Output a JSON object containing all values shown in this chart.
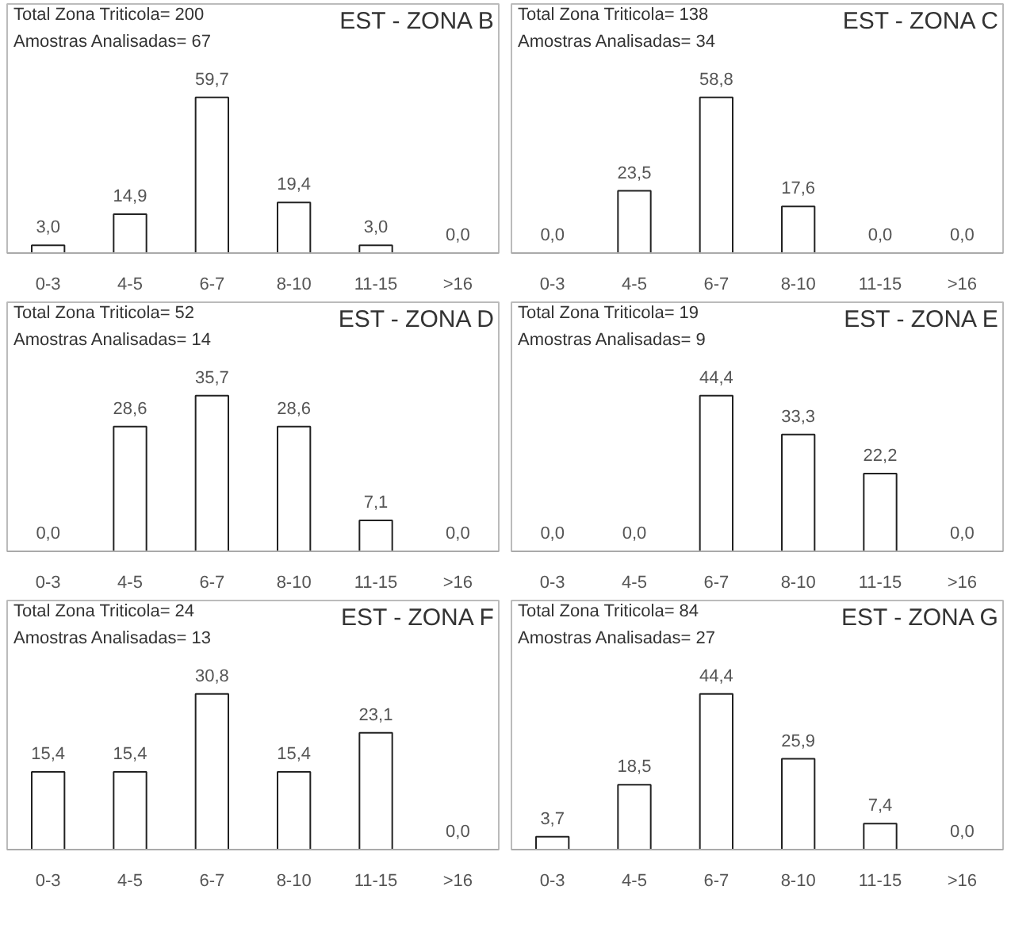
{
  "chart_data": [
    {
      "type": "bar",
      "title": "EST - ZONA B",
      "annotations": [
        "Total Zona Triticola= 200",
        "Amostras Analisadas= 67"
      ],
      "categories": [
        "0-3",
        "4-5",
        "6-7",
        "8-10",
        "11-15",
        ">16"
      ],
      "values": [
        3.0,
        14.9,
        59.7,
        19.4,
        3.0,
        0.0
      ],
      "value_labels": [
        "3,0",
        "14,9",
        "59,7",
        "19,4",
        "3,0",
        "0,0"
      ],
      "color": "#ffffff"
    },
    {
      "type": "bar",
      "title": "EST - ZONA C",
      "annotations": [
        "Total Zona Triticola= 138",
        "Amostras Analisadas= 34"
      ],
      "categories": [
        "0-3",
        "4-5",
        "6-7",
        "8-10",
        "11-15",
        ">16"
      ],
      "values": [
        0.0,
        23.5,
        58.8,
        17.6,
        0.0,
        0.0
      ],
      "value_labels": [
        "0,0",
        "23,5",
        "58,8",
        "17,6",
        "0,0",
        "0,0"
      ],
      "color": "#ffffff"
    },
    {
      "type": "bar",
      "title": "EST - ZONA D",
      "annotations": [
        "Total Zona Triticola= 52",
        "Amostras Analisadas= 14"
      ],
      "categories": [
        "0-3",
        "4-5",
        "6-7",
        "8-10",
        "11-15",
        ">16"
      ],
      "values": [
        0.0,
        28.6,
        35.7,
        28.6,
        7.1,
        0.0
      ],
      "value_labels": [
        "0,0",
        "28,6",
        "35,7",
        "28,6",
        "7,1",
        "0,0"
      ],
      "color": "#ffffff"
    },
    {
      "type": "bar",
      "title": "EST - ZONA E",
      "annotations": [
        "Total Zona Triticola= 19",
        "Amostras Analisadas= 9"
      ],
      "categories": [
        "0-3",
        "4-5",
        "6-7",
        "8-10",
        "11-15",
        ">16"
      ],
      "values": [
        0.0,
        0.0,
        44.4,
        33.3,
        22.2,
        0.0
      ],
      "value_labels": [
        "0,0",
        "0,0",
        "44,4",
        "33,3",
        "22,2",
        "0,0"
      ],
      "color": "#ffffff"
    },
    {
      "type": "bar",
      "title": "EST - ZONA F",
      "annotations": [
        "Total Zona Triticola= 24",
        "Amostras Analisadas= 13"
      ],
      "categories": [
        "0-3",
        "4-5",
        "6-7",
        "8-10",
        "11-15",
        ">16"
      ],
      "values": [
        15.4,
        15.4,
        30.8,
        15.4,
        23.1,
        0.0
      ],
      "value_labels": [
        "15,4",
        "15,4",
        "30,8",
        "15,4",
        "23,1",
        "0,0"
      ],
      "color": "#ffffff"
    },
    {
      "type": "bar",
      "title": "EST - ZONA G",
      "annotations": [
        "Total Zona Triticola= 84",
        "Amostras Analisadas= 27"
      ],
      "categories": [
        "0-3",
        "4-5",
        "6-7",
        "8-10",
        "11-15",
        ">16"
      ],
      "values": [
        3.7,
        18.5,
        44.4,
        25.9,
        7.4,
        0.0
      ],
      "value_labels": [
        "3,7",
        "18,5",
        "44,4",
        "25,9",
        "7,4",
        "0,0"
      ],
      "color": "#ffffff"
    }
  ]
}
